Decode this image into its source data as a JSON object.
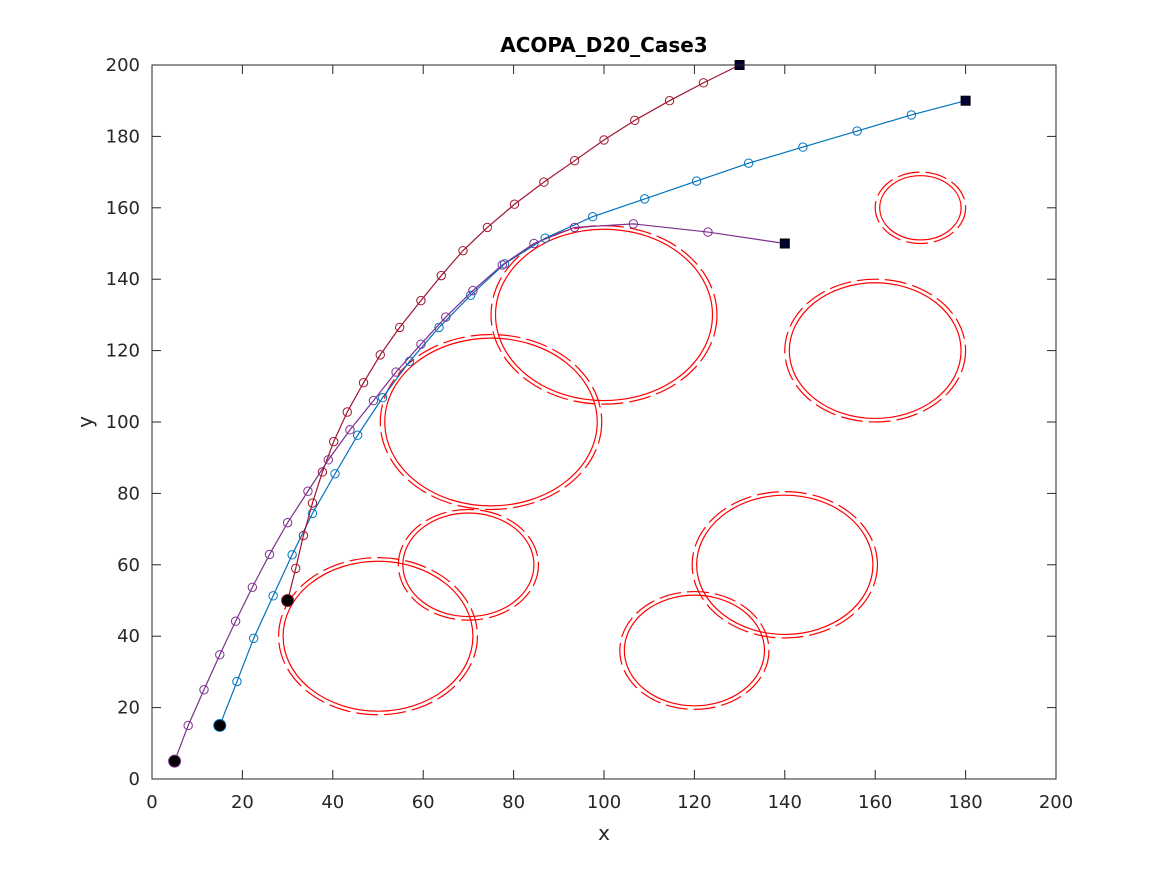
{
  "chart_data": {
    "type": "line",
    "title": "ACOPA_D20_Case3",
    "xlabel": "x",
    "ylabel": "y",
    "xlim": [
      0,
      200
    ],
    "ylim": [
      0,
      200
    ],
    "xticks": [
      0,
      20,
      40,
      60,
      80,
      100,
      120,
      140,
      160,
      180,
      200
    ],
    "yticks": [
      0,
      20,
      40,
      60,
      80,
      100,
      120,
      140,
      160,
      180,
      200
    ],
    "grid": false,
    "obstacles": [
      {
        "cx": 50,
        "cy": 40,
        "r": 21,
        "color": "#ff0000"
      },
      {
        "cx": 70,
        "cy": 60,
        "r": 14.5,
        "color": "#ff0000"
      },
      {
        "cx": 75,
        "cy": 100,
        "r": 23.5,
        "color": "#ff0000"
      },
      {
        "cx": 100,
        "cy": 130,
        "r": 24,
        "color": "#ff0000"
      },
      {
        "cx": 120,
        "cy": 36,
        "r": 15.5,
        "color": "#ff0000"
      },
      {
        "cx": 140,
        "cy": 60,
        "r": 19.5,
        "color": "#ff0000"
      },
      {
        "cx": 160,
        "cy": 120,
        "r": 19,
        "color": "#ff0000"
      },
      {
        "cx": 170,
        "cy": 160,
        "r": 9,
        "color": "#ff0000"
      }
    ],
    "series": [
      {
        "color": "#0072bd",
        "start": [
          15,
          15
        ],
        "goal": [
          180,
          190
        ],
        "x": [
          15,
          18.8,
          22.5,
          26.8,
          31.0,
          35.5,
          40.5,
          45.5,
          51.0,
          57.0,
          63.5,
          70.5,
          78.0,
          87.0,
          97.5,
          109.0,
          120.5,
          132.0,
          144.0,
          156.0,
          168.0,
          180.0
        ],
        "y": [
          15,
          27.3,
          39.4,
          51.3,
          62.8,
          74.4,
          85.5,
          96.3,
          106.8,
          117.0,
          126.5,
          135.5,
          144.3,
          151.5,
          157.5,
          162.5,
          167.5,
          172.5,
          177.0,
          181.5,
          186.0,
          190.0
        ]
      },
      {
        "color": "#a2142f",
        "start": [
          30,
          50
        ],
        "goal": [
          130,
          200
        ],
        "x": [
          30,
          31.8,
          33.5,
          35.5,
          37.7,
          40.2,
          43.2,
          46.8,
          50.5,
          54.8,
          59.5,
          64.0,
          68.8,
          74.2,
          80.2,
          86.7,
          93.5,
          100.0,
          106.8,
          114.5,
          122.0,
          130.0
        ],
        "y": [
          50,
          59.0,
          68.2,
          77.3,
          86.0,
          94.5,
          102.8,
          111.0,
          118.8,
          126.5,
          134.0,
          141.0,
          148.0,
          154.5,
          161.0,
          167.2,
          173.2,
          179.0,
          184.5,
          190.0,
          195.0,
          200.0
        ]
      },
      {
        "color": "#7e2f8e",
        "start": [
          5,
          5
        ],
        "goal": [
          140,
          150
        ],
        "x": [
          5,
          8.0,
          11.5,
          15.0,
          18.5,
          22.2,
          26.0,
          30.0,
          34.5,
          39.0,
          43.8,
          49.0,
          54.0,
          59.5,
          65.0,
          71.0,
          77.5,
          84.5,
          93.5,
          106.5,
          123.0,
          140.0
        ],
        "y": [
          5,
          15.0,
          25.0,
          34.8,
          44.2,
          53.7,
          62.9,
          71.8,
          80.6,
          89.4,
          97.8,
          106.0,
          114.0,
          121.8,
          129.4,
          136.8,
          144.0,
          150.0,
          154.5,
          155.5,
          153.2,
          150.0
        ]
      }
    ]
  }
}
